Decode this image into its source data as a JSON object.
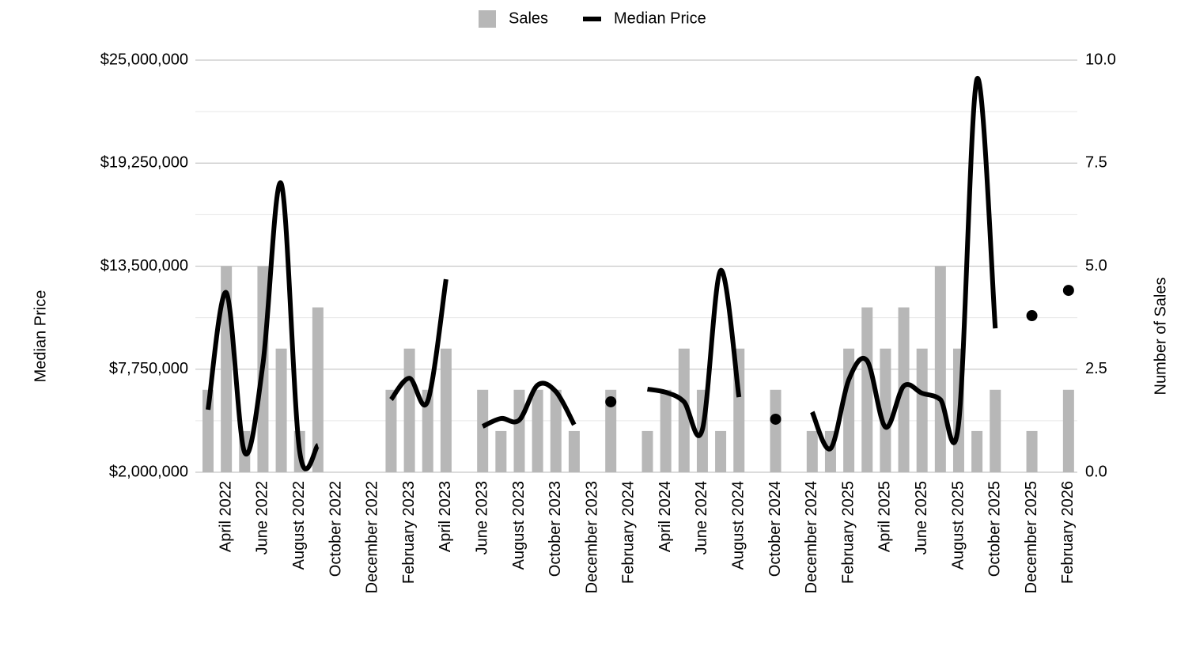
{
  "chart_data": {
    "type": "combo",
    "categories": [
      null,
      "April 2022",
      null,
      "June 2022",
      null,
      "August 2022",
      null,
      "October 2022",
      null,
      "December 2022",
      null,
      "February 2023",
      null,
      "April 2023",
      null,
      "June 2023",
      null,
      "August 2023",
      null,
      "October 2023",
      null,
      "December 2023",
      null,
      "February 2024",
      null,
      "April 2024",
      null,
      "June 2024",
      null,
      "August 2024",
      null,
      "October 2024",
      null,
      "December 2024",
      null,
      "February 2025",
      null,
      "April 2025",
      null,
      "June 2025",
      null,
      "August 2025",
      null,
      "October 2025",
      null,
      "December 2025",
      null,
      "February 2026"
    ],
    "series": [
      {
        "name": "Sales",
        "type": "bar",
        "axis": "y2",
        "color": "#b7b7b7",
        "values": [
          2,
          5,
          1,
          5,
          3,
          1,
          4,
          0,
          0,
          0,
          2,
          3,
          2,
          3,
          0,
          2,
          1,
          2,
          2,
          2,
          1,
          0,
          2,
          0,
          1,
          2,
          3,
          2,
          1,
          3,
          0,
          2,
          0,
          1,
          1,
          3,
          4,
          3,
          4,
          3,
          5,
          3,
          1,
          2,
          0,
          1,
          0,
          2
        ]
      },
      {
        "name": "Median Price",
        "type": "line",
        "axis": "y",
        "color": "#000000",
        "values": [
          5490000,
          12020000,
          3100000,
          8050000,
          18100000,
          3200000,
          3500000,
          null,
          null,
          null,
          6060000,
          7250000,
          5970000,
          12770000,
          null,
          4560000,
          5000000,
          4910000,
          6860000,
          6500000,
          4650000,
          null,
          5930000,
          null,
          6640000,
          6460000,
          5930000,
          4380000,
          13260000,
          6190000,
          null,
          4960000,
          null,
          5360000,
          3320000,
          7170000,
          8220000,
          4520000,
          6810000,
          6410000,
          6060000,
          4740000,
          23940000,
          10030000,
          null,
          10740000,
          null,
          12150000
        ]
      }
    ],
    "ylabel": "Median Price",
    "y2label": "Number of Sales",
    "ylim": [
      2000000,
      25000000
    ],
    "yticks": [
      {
        "value": 2000000,
        "label": "$2,000,000"
      },
      {
        "value": 7750000,
        "label": "$7,750,000"
      },
      {
        "value": 13500000,
        "label": "$13,500,000"
      },
      {
        "value": 19250000,
        "label": "$19,250,000"
      },
      {
        "value": 25000000,
        "label": "$25,000,000"
      }
    ],
    "yminor_ticks": [
      4875000,
      10625000,
      16375000,
      22125000
    ],
    "y2lim": [
      0,
      10
    ],
    "y2ticks": [
      {
        "value": 0,
        "label": "0.0"
      },
      {
        "value": 2.5,
        "label": "2.5"
      },
      {
        "value": 5,
        "label": "5.0"
      },
      {
        "value": 7.5,
        "label": "7.5"
      },
      {
        "value": 10,
        "label": "10.0"
      }
    ],
    "grid": true,
    "legend": "top"
  }
}
